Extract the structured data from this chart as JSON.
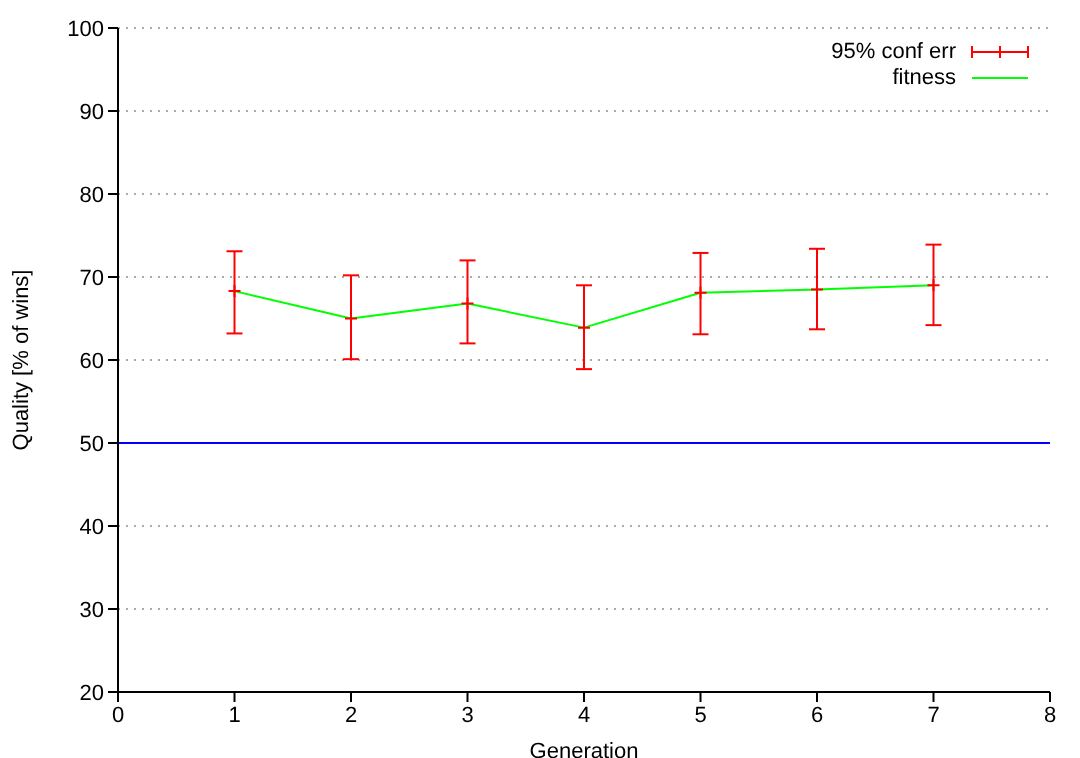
{
  "chart_data": {
    "type": "line",
    "xlabel": "Generation",
    "ylabel": "Quality [% of wins]",
    "x": [
      1,
      2,
      3,
      4,
      5,
      6,
      7
    ],
    "series": [
      {
        "name": "95% conf err",
        "type": "scatter",
        "marker": "cross",
        "color": "#ff0000",
        "values": [
          68.3,
          65.0,
          66.8,
          63.9,
          68.1,
          68.5,
          69.0
        ],
        "errors": [
          [
            63.2,
            73.1
          ],
          [
            60.1,
            70.2
          ],
          [
            62.0,
            72.0
          ],
          [
            58.9,
            69.0
          ],
          [
            63.1,
            72.9
          ],
          [
            63.7,
            73.4
          ],
          [
            64.2,
            73.9
          ]
        ]
      },
      {
        "name": "fitness",
        "marker": "none",
        "color": "#00ff00",
        "values": [
          68.3,
          65.0,
          66.8,
          63.9,
          68.1,
          68.5,
          69.0
        ]
      }
    ],
    "xlim": [
      0,
      8
    ],
    "xticks": [
      0,
      1,
      2,
      3,
      4,
      5,
      6,
      7,
      8
    ],
    "ylim": [
      20,
      100
    ],
    "yticks": [
      20,
      30,
      40,
      50,
      60,
      70,
      80,
      90,
      100
    ],
    "ref_lines": [
      {
        "axis": "y",
        "value": 50,
        "color": "#0000ff"
      }
    ],
    "grid": "y",
    "legend": "top right"
  }
}
